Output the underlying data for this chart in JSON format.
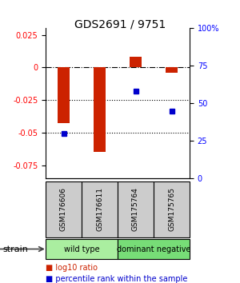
{
  "title": "GDS2691 / 9751",
  "samples": [
    "GSM176606",
    "GSM176611",
    "GSM175764",
    "GSM175765"
  ],
  "log10_ratio": [
    -0.043,
    -0.065,
    0.008,
    -0.004
  ],
  "percentile_rank": [
    30,
    null,
    58,
    45
  ],
  "groups": [
    {
      "label": "wild type",
      "samples": [
        0,
        1
      ],
      "color": "#aaeea0"
    },
    {
      "label": "dominant negative",
      "samples": [
        2,
        3
      ],
      "color": "#77dd77"
    }
  ],
  "ylim_left": [
    -0.085,
    0.03
  ],
  "ylim_right": [
    0,
    100
  ],
  "yticks_left": [
    0.025,
    0,
    -0.025,
    -0.05,
    -0.075
  ],
  "yticks_right": [
    100,
    75,
    50,
    25,
    0
  ],
  "hline_dashed": 0,
  "hlines_dotted": [
    -0.025,
    -0.05
  ],
  "bar_color": "#cc2200",
  "dot_color": "#0000cc",
  "bar_width": 0.35,
  "legend_items": [
    {
      "label": "log10 ratio",
      "color": "#cc2200"
    },
    {
      "label": "percentile rank within the sample",
      "color": "#0000cc"
    }
  ],
  "strain_label": "strain"
}
